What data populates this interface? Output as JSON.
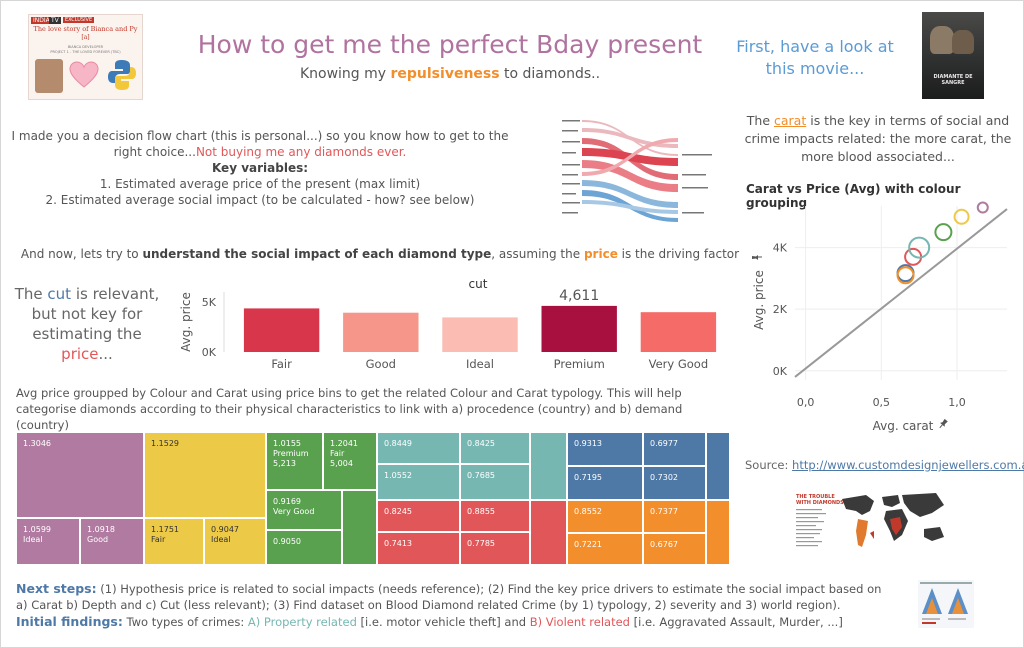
{
  "header": {
    "title": "How to get me the perfect Bday present",
    "subtitle_pre": "Knowing my ",
    "subtitle_highlight": "repulsiveness",
    "subtitle_post": " to diamonds.."
  },
  "logo": {
    "tag1": "INDIA",
    "tag2": "TV",
    "tag3": "EXCLUSIVE",
    "line1": "The love story of Bianca and Py",
    "line2": "[a]",
    "line3": "BIANCA DEVELOPER",
    "line4": "PROJECT 1 - THE LOVED FOREVER (TBC)"
  },
  "movie": {
    "intro": "First, have a look at this movie...",
    "poster_title": "DIAMANTE DE SANGRE"
  },
  "intro": {
    "line1": "I made you a decision flow chart (this is personal...) so you know how to get to the right choice...",
    "line1_red": "Not buying me any diamonds ever.",
    "key_vars": "Key variables:",
    "item1": "1. Estimated average price of the present (max limit)",
    "item2": "2. Estimated average social impact (to be calculated - how? see below)"
  },
  "carat_note": {
    "pre": "The ",
    "word": "carat",
    "post": " is the key in terms of social and crime impacts related: the more carat, the more blood associated..."
  },
  "now_line": {
    "pre": "And now, lets try to ",
    "bold": "understand the social impact of each diamond type",
    "mid": ", assuming the ",
    "orange": "price",
    "post": " is the driving factor"
  },
  "cut_note": {
    "pre": "The ",
    "cut": "cut",
    "mid": " is relevant, but not key for estimating the ",
    "price": "price",
    "post": "..."
  },
  "avg_note": "Avg price groupped by Colour and Carat using price bins to get the related Colour and Carat typology. This will help categorise diamonds according to their physical characteristics to link with a) procedence (country) and b) demand (country)",
  "source": {
    "label": "Source: ",
    "link": "http://www.customdesignjewellers.com.a.."
  },
  "next": {
    "label1": "Next steps:",
    "text1": " (1) Hypothesis price is related to social impacts (needs reference); (2) Find the key price drivers to estimate the social impact based on a) Carat b) Depth and c)  Cut (less relevant); (3) Find dataset on Blood Diamond related Crime (by 1) typology, 2) severity and 3) world region).",
    "label2": "Initial findings:",
    "text2a": " Two types of crimes: ",
    "prop": "A) Property related",
    "text2b": " [i.e. motor vehicle theft] and ",
    "viol": "B) Violent related",
    "text2c": " [i.e. Aggravated Assault, Murder, ...]"
  },
  "map_thumb": {
    "title1": "THE TROUBLE",
    "title2": "WITH DIAMONDS"
  },
  "chart_data": [
    {
      "type": "bar",
      "title": "cut",
      "ylabel": "Avg. price",
      "categories": [
        "Fair",
        "Good",
        "Ideal",
        "Premium",
        "Very Good"
      ],
      "values": [
        4359,
        3929,
        3458,
        4611,
        3982
      ],
      "highlight_label": "4,611",
      "ylim": [
        0,
        6000
      ],
      "yticks": [
        {
          "v": 0,
          "label": "0K"
        },
        {
          "v": 5000,
          "label": "5K"
        }
      ],
      "colors": [
        "#d8364a",
        "#f6958a",
        "#fbbcb3",
        "#a8103f",
        "#f46b68"
      ]
    },
    {
      "type": "scatter",
      "title": "Carat vs Price (Avg) with colour grouping",
      "xlabel": "Avg. carat",
      "ylabel": "Avg. price",
      "xlim": [
        -0.07,
        1.33
      ],
      "ylim": [
        -300,
        5350
      ],
      "xticks": [
        {
          "v": 0,
          "label": "0,0"
        },
        {
          "v": 0.5,
          "label": "0,5"
        },
        {
          "v": 1.0,
          "label": "1,0"
        }
      ],
      "yticks": [
        {
          "v": 0,
          "label": "0K"
        },
        {
          "v": 2000,
          "label": "2K"
        },
        {
          "v": 4000,
          "label": "4K"
        }
      ],
      "trend": [
        [
          -0.07,
          -200
        ],
        [
          1.33,
          5250
        ]
      ],
      "points": [
        {
          "x": 0.66,
          "y": 3170,
          "color": "#4e79a7",
          "size": 8
        },
        {
          "x": 0.66,
          "y": 3100,
          "color": "#f28e2b",
          "size": 8
        },
        {
          "x": 0.71,
          "y": 3700,
          "color": "#e15759",
          "size": 8
        },
        {
          "x": 0.75,
          "y": 4000,
          "color": "#76b7b2",
          "size": 10
        },
        {
          "x": 0.91,
          "y": 4500,
          "color": "#59a14f",
          "size": 8
        },
        {
          "x": 1.03,
          "y": 5000,
          "color": "#edc948",
          "size": 7
        },
        {
          "x": 1.17,
          "y": 5300,
          "color": "#b07aa1",
          "size": 5
        }
      ]
    },
    {
      "type": "heatmap",
      "title": "",
      "labels": [
        {
          "text": "1.3046"
        },
        {
          "text": "1.0599\nIdeal"
        },
        {
          "text": "1.0918\nGood"
        },
        {
          "text": "1.1529"
        },
        {
          "text": "1.1751\nFair"
        },
        {
          "text": "0.9047\nIdeal"
        },
        {
          "text": "1.0155\nPremium\n5,213"
        },
        {
          "text": "1.2041\nFair\n5,004"
        },
        {
          "text": "0.9169\nVery Good"
        },
        {
          "text": "0.9050"
        },
        {
          "text": "0.8449"
        },
        {
          "text": "0.8425"
        },
        {
          "text": "1.0552"
        },
        {
          "text": "0.7685"
        },
        {
          "text": "0.8245"
        },
        {
          "text": "0.8855"
        },
        {
          "text": "0.7413"
        },
        {
          "text": "0.7785"
        },
        {
          "text": "0.9313"
        },
        {
          "text": "0.6977"
        },
        {
          "text": "0.7195"
        },
        {
          "text": "0.7302"
        },
        {
          "text": "0.8552"
        },
        {
          "text": "0.7377"
        },
        {
          "text": "0.7221"
        },
        {
          "text": "0.6767"
        }
      ]
    }
  ]
}
